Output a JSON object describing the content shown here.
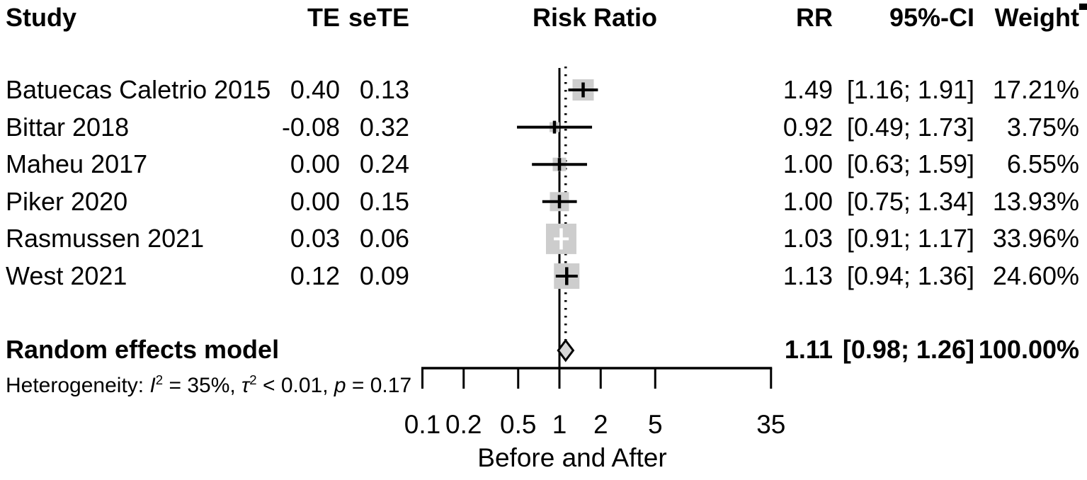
{
  "colors": {
    "square": "#cdcdcd",
    "diamond": "#d6d6d6",
    "line": "#000000",
    "white": "#ffffff",
    "text": "#000000",
    "background": "#ffffff"
  },
  "chart_data": {
    "type": "forest",
    "columns": {
      "study": "Study",
      "te": "TE",
      "sete": "seTE",
      "plot": "Risk Ratio",
      "rr": "RR",
      "ci": "95%-CI",
      "weight": "Weight"
    },
    "studies": [
      {
        "name": "Batuecas Caletrio 2015",
        "te": "0.40",
        "sete": "0.13",
        "rr": 1.49,
        "ci_low": 1.16,
        "ci_high": 1.91,
        "rr_text": "1.49",
        "ci_text": "[1.16; 1.91]",
        "weight": 17.21,
        "weight_text": "17.21%"
      },
      {
        "name": "Bittar 2018",
        "te": "-0.08",
        "sete": "0.32",
        "rr": 0.92,
        "ci_low": 0.49,
        "ci_high": 1.73,
        "rr_text": "0.92",
        "ci_text": "[0.49; 1.73]",
        "weight": 3.75,
        "weight_text": "3.75%"
      },
      {
        "name": "Maheu 2017",
        "te": "0.00",
        "sete": "0.24",
        "rr": 1.0,
        "ci_low": 0.63,
        "ci_high": 1.59,
        "rr_text": "1.00",
        "ci_text": "[0.63; 1.59]",
        "weight": 6.55,
        "weight_text": "6.55%"
      },
      {
        "name": "Piker 2020",
        "te": "0.00",
        "sete": "0.15",
        "rr": 1.0,
        "ci_low": 0.75,
        "ci_high": 1.34,
        "rr_text": "1.00",
        "ci_text": "[0.75; 1.34]",
        "weight": 13.93,
        "weight_text": "13.93%"
      },
      {
        "name": "Rasmussen 2021",
        "te": "0.03",
        "sete": "0.06",
        "rr": 1.03,
        "ci_low": 0.91,
        "ci_high": 1.17,
        "rr_text": "1.03",
        "ci_text": "[0.91; 1.17]",
        "weight": 33.96,
        "weight_text": "33.96%"
      },
      {
        "name": "West 2021",
        "te": "0.12",
        "sete": "0.09",
        "rr": 1.13,
        "ci_low": 0.94,
        "ci_high": 1.36,
        "rr_text": "1.13",
        "ci_text": "[0.94; 1.36]",
        "weight": 24.6,
        "weight_text": "24.60%"
      }
    ],
    "summary": {
      "name": "Random effects model",
      "rr": 1.11,
      "ci_low": 0.98,
      "ci_high": 1.26,
      "rr_text": "1.11",
      "ci_text": "[0.98; 1.26]",
      "weight_text": "100.00%"
    },
    "heterogeneity": {
      "prefix": "Heterogeneity: ",
      "i_sym": "I",
      "i_exp": "2",
      "i_val": " = 35%, ",
      "tau_sym": "τ",
      "tau_exp": "2",
      "tau_val": " < 0.01, ",
      "p_sym": "p",
      "p_val": " = 0.17"
    },
    "x_axis": {
      "scale": "log",
      "ticks": [
        0.1,
        0.2,
        0.5,
        1,
        2,
        5,
        35
      ],
      "tick_labels": [
        "0.1",
        "0.2",
        "0.5",
        "1",
        "2",
        "5",
        "35"
      ],
      "range": [
        0.1,
        35
      ],
      "label": "Before and After",
      "reference_value": 1,
      "pooled_value": 1.11
    }
  }
}
